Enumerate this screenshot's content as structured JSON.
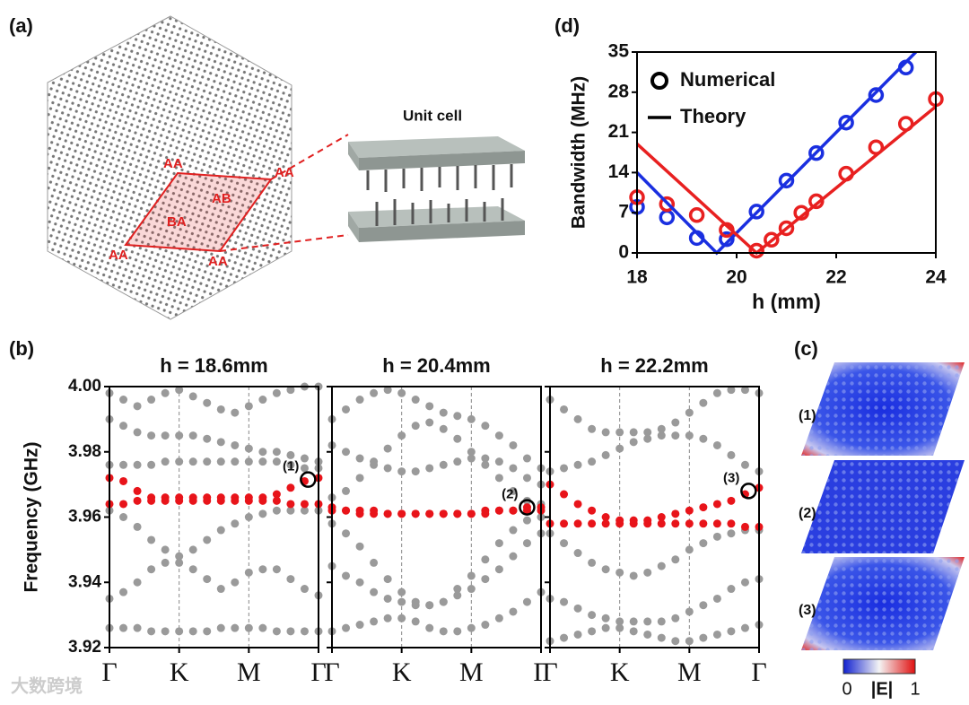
{
  "chart_data": [
    {
      "type": "scatter",
      "marker": "open",
      "xlabel": "h (mm)",
      "ylabel": "Bandwidth (MHz)",
      "xlim": [
        18,
        24
      ],
      "xticks": [
        18,
        20,
        22,
        24
      ],
      "ylim": [
        0,
        35
      ],
      "yticks": [
        0,
        7,
        14,
        21,
        28,
        35
      ],
      "legend": [
        {
          "name": "Numerical",
          "marker": "circle"
        },
        {
          "name": "Theory",
          "marker": "line"
        }
      ],
      "series": [
        {
          "color": "#1a2fe0",
          "mode": "markers",
          "x": [
            18,
            18.6,
            19.2,
            19.8,
            20.4,
            21,
            21.6,
            22.2,
            22.8,
            23.4
          ],
          "values": [
            8,
            6.2,
            2.6,
            2.4,
            7.2,
            12.6,
            17.4,
            22.7,
            27.5,
            32.3
          ]
        },
        {
          "color": "#e82020",
          "mode": "markers",
          "x": [
            18,
            18.6,
            19.2,
            19.8,
            20.4,
            20.7,
            21,
            21.3,
            21.6,
            22.2,
            22.8,
            23.4,
            24
          ],
          "values": [
            9.7,
            8.5,
            6.6,
            4,
            0.4,
            2.3,
            4.3,
            7,
            9,
            13.8,
            18.4,
            22.5,
            26.8
          ]
        },
        {
          "color": "#1a2fe0",
          "mode": "line",
          "x": [
            18,
            19.6,
            23.6
          ],
          "values": [
            14,
            0,
            35
          ]
        },
        {
          "color": "#e82020",
          "mode": "line",
          "x": [
            18,
            20.4,
            24
          ],
          "values": [
            19,
            0,
            25.5
          ]
        }
      ]
    },
    {
      "type": "scatter",
      "marker": "filled",
      "title": "h = 18.6mm",
      "ylabel": "Frequency (GHz)",
      "vgrid": true,
      "xlim": [
        0,
        3
      ],
      "xticks": [
        {
          "value": 0,
          "label": "Γ"
        },
        {
          "value": 1,
          "label": "K"
        },
        {
          "value": 2,
          "label": "M"
        },
        {
          "value": 3,
          "label": "Γ"
        }
      ],
      "ylim": [
        3.92,
        4.0
      ],
      "yticks": [
        3.92,
        3.94,
        3.96,
        3.98,
        {
          "value": 4.0,
          "label": "4.00"
        }
      ],
      "x": [
        0,
        0.2,
        0.4,
        0.6,
        0.8,
        1,
        1.2,
        1.4,
        1.6,
        1.8,
        2,
        2.2,
        2.4,
        2.6,
        2.8,
        3
      ],
      "series": [
        {
          "color": "#9a9a9a",
          "values": [
            3.976,
            3.976,
            3.976,
            3.976,
            3.977,
            3.977,
            3.977,
            3.977,
            3.977,
            3.977,
            3.977,
            3.977,
            3.977,
            3.976,
            3.975,
            3.975
          ]
        },
        {
          "color": "#9a9a9a",
          "values": [
            3.962,
            3.96,
            3.957,
            3.953,
            3.95,
            3.948,
            3.95,
            3.953,
            3.956,
            3.958,
            3.96,
            3.961,
            3.962,
            3.962,
            3.962,
            3.962
          ]
        },
        {
          "color": "#9a9a9a",
          "values": [
            3.99,
            3.988,
            3.986,
            3.985,
            3.985,
            3.985,
            3.985,
            3.984,
            3.983,
            3.982,
            3.981,
            3.98,
            3.98,
            3.979,
            3.978,
            3.977
          ]
        },
        {
          "color": "#9a9a9a",
          "values": [
            3.935,
            3.937,
            3.94,
            3.944,
            3.946,
            3.946,
            3.944,
            3.941,
            3.938,
            3.94,
            3.943,
            3.944,
            3.944,
            3.941,
            3.938,
            3.936
          ]
        },
        {
          "color": "#9a9a9a",
          "values": [
            3.926,
            3.926,
            3.926,
            3.925,
            3.925,
            3.925,
            3.925,
            3.925,
            3.926,
            3.926,
            3.926,
            3.926,
            3.925,
            3.925,
            3.925,
            3.925
          ]
        },
        {
          "color": "#9a9a9a",
          "values": [
            3.998,
            3.996,
            3.994,
            3.996,
            3.998,
            3.999,
            3.997,
            3.995,
            3.993,
            3.992,
            3.994,
            3.996,
            3.998,
            3.999,
            4.0,
            4.0
          ]
        },
        {
          "color": "#e8141a",
          "values": [
            3.972,
            3.971,
            3.968,
            3.966,
            3.966,
            3.966,
            3.966,
            3.966,
            3.966,
            3.966,
            3.966,
            3.966,
            3.967,
            3.969,
            3.971,
            3.972
          ]
        },
        {
          "color": "#e8141a",
          "values": [
            3.964,
            3.964,
            3.965,
            3.965,
            3.965,
            3.965,
            3.965,
            3.965,
            3.965,
            3.965,
            3.965,
            3.965,
            3.965,
            3.964,
            3.964,
            3.964
          ]
        }
      ],
      "annotations": [
        {
          "text": "(1)",
          "x": 2.85,
          "y": 3.9715
        }
      ]
    },
    {
      "type": "scatter",
      "marker": "filled",
      "title": "h = 20.4mm",
      "vgrid": true,
      "show_ytick_labels": false,
      "xlim": [
        0,
        3
      ],
      "xticks": [
        {
          "value": 0,
          "label": "Γ"
        },
        {
          "value": 1,
          "label": "K"
        },
        {
          "value": 2,
          "label": "M"
        },
        {
          "value": 3,
          "label": "Γ"
        }
      ],
      "ylim": [
        3.92,
        4.0
      ],
      "yticks": [
        3.92,
        3.94,
        3.96,
        3.98,
        4.0
      ],
      "x": [
        0,
        0.2,
        0.4,
        0.6,
        0.8,
        1,
        1.2,
        1.4,
        1.6,
        1.8,
        2,
        2.2,
        2.4,
        2.6,
        2.8,
        3
      ],
      "series": [
        {
          "color": "#9a9a9a",
          "values": [
            3.966,
            3.968,
            3.972,
            3.977,
            3.981,
            3.985,
            3.988,
            3.989,
            3.987,
            3.984,
            3.98,
            3.976,
            3.972,
            3.968,
            3.965,
            3.964
          ]
        },
        {
          "color": "#9a9a9a",
          "values": [
            3.958,
            3.955,
            3.951,
            3.946,
            3.941,
            3.937,
            3.934,
            3.933,
            3.934,
            3.938,
            3.942,
            3.947,
            3.952,
            3.956,
            3.959,
            3.96
          ]
        },
        {
          "color": "#9a9a9a",
          "values": [
            3.99,
            3.993,
            3.996,
            3.998,
            3.999,
            3.998,
            3.996,
            3.994,
            3.992,
            3.991,
            3.99,
            3.988,
            3.985,
            3.982,
            3.978,
            3.975
          ]
        },
        {
          "color": "#9a9a9a",
          "values": [
            3.925,
            3.926,
            3.927,
            3.928,
            3.929,
            3.929,
            3.928,
            3.926,
            3.925,
            3.925,
            3.926,
            3.927,
            3.929,
            3.931,
            3.934,
            3.937
          ]
        },
        {
          "color": "#9a9a9a",
          "values": [
            3.945,
            3.942,
            3.94,
            3.937,
            3.935,
            3.934,
            3.933,
            3.933,
            3.934,
            3.936,
            3.938,
            3.941,
            3.944,
            3.948,
            3.952,
            3.955
          ]
        },
        {
          "color": "#9a9a9a",
          "values": [
            3.982,
            3.98,
            3.978,
            3.976,
            3.975,
            3.974,
            3.974,
            3.975,
            3.976,
            3.977,
            3.978,
            3.978,
            3.977,
            3.975,
            3.972,
            3.97
          ]
        },
        {
          "color": "#e8141a",
          "values": [
            3.963,
            3.962,
            3.962,
            3.962,
            3.961,
            3.961,
            3.961,
            3.961,
            3.961,
            3.961,
            3.961,
            3.962,
            3.962,
            3.962,
            3.963,
            3.963
          ]
        },
        {
          "color": "#e8141a",
          "values": [
            3.962,
            3.962,
            3.961,
            3.961,
            3.961,
            3.961,
            3.961,
            3.961,
            3.961,
            3.961,
            3.961,
            3.961,
            3.962,
            3.962,
            3.962,
            3.962
          ]
        }
      ],
      "annotations": [
        {
          "text": "(2)",
          "x": 2.8,
          "y": 3.963
        }
      ]
    },
    {
      "type": "scatter",
      "marker": "filled",
      "title": "h = 22.2mm",
      "vgrid": true,
      "show_ytick_labels": false,
      "xlim": [
        0,
        3
      ],
      "xticks": [
        {
          "value": 0,
          "label": "Γ"
        },
        {
          "value": 1,
          "label": "K"
        },
        {
          "value": 2,
          "label": "M"
        },
        {
          "value": 3,
          "label": "Γ"
        }
      ],
      "ylim": [
        3.92,
        4.0
      ],
      "yticks": [
        3.92,
        3.94,
        3.96,
        3.98,
        4.0
      ],
      "x": [
        0,
        0.2,
        0.4,
        0.6,
        0.8,
        1,
        1.2,
        1.4,
        1.6,
        1.8,
        2,
        2.2,
        2.4,
        2.6,
        2.8,
        3
      ],
      "series": [
        {
          "color": "#9a9a9a",
          "values": [
            3.974,
            3.975,
            3.976,
            3.977,
            3.979,
            3.981,
            3.983,
            3.984,
            3.985,
            3.985,
            3.985,
            3.984,
            3.982,
            3.979,
            3.976,
            3.974
          ]
        },
        {
          "color": "#9a9a9a",
          "values": [
            3.955,
            3.952,
            3.949,
            3.946,
            3.944,
            3.943,
            3.942,
            3.943,
            3.945,
            3.947,
            3.95,
            3.952,
            3.954,
            3.955,
            3.956,
            3.956
          ]
        },
        {
          "color": "#9a9a9a",
          "values": [
            3.935,
            3.934,
            3.932,
            3.93,
            3.929,
            3.928,
            3.928,
            3.928,
            3.928,
            3.929,
            3.931,
            3.933,
            3.935,
            3.938,
            3.94,
            3.941
          ]
        },
        {
          "color": "#9a9a9a",
          "values": [
            3.996,
            3.993,
            3.99,
            3.987,
            3.986,
            3.986,
            3.986,
            3.986,
            3.987,
            3.989,
            3.992,
            3.995,
            3.998,
            3.999,
            3.999,
            3.998
          ]
        },
        {
          "color": "#9a9a9a",
          "values": [
            3.922,
            3.923,
            3.924,
            3.925,
            3.926,
            3.926,
            3.925,
            3.924,
            3.923,
            3.922,
            3.922,
            3.923,
            3.924,
            3.925,
            3.926,
            3.927
          ]
        },
        {
          "color": "#e8141a",
          "values": [
            3.97,
            3.967,
            3.964,
            3.962,
            3.96,
            3.959,
            3.959,
            3.959,
            3.96,
            3.961,
            3.962,
            3.963,
            3.964,
            3.965,
            3.967,
            3.969
          ]
        },
        {
          "color": "#e8141a",
          "values": [
            3.958,
            3.958,
            3.958,
            3.958,
            3.958,
            3.958,
            3.958,
            3.958,
            3.958,
            3.958,
            3.958,
            3.958,
            3.958,
            3.958,
            3.957,
            3.957
          ]
        }
      ],
      "annotations": [
        {
          "text": "(3)",
          "x": 2.85,
          "y": 3.968
        }
      ]
    }
  ],
  "labels": {
    "panel_a": "(a)",
    "panel_b": "(b)",
    "panel_c": "(c)",
    "panel_d": "(d)",
    "unit_cell": "Unit cell",
    "stacking": [
      "AA",
      "AA",
      "AB",
      "BA",
      "AA",
      "AA"
    ],
    "field_maps": [
      "(1)",
      "(2)",
      "(3)"
    ],
    "colorbar": {
      "min": 0,
      "title": "|E|",
      "max": 1
    },
    "watermark": "大数跨境"
  }
}
